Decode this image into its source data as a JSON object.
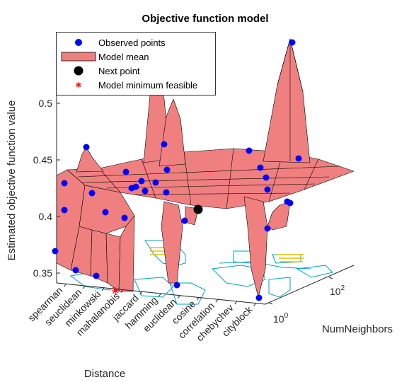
{
  "chart_data": {
    "type": "surface3d",
    "title": "Objective function model",
    "xlabel": "Distance",
    "ylabel": "NumNeighbors",
    "zlabel": "Estimated objective function value",
    "categories": [
      "spearman",
      "seuclidean",
      "minkowski",
      "mahalanobis",
      "jaccard",
      "hamming",
      "euclidean",
      "cosine",
      "correlation",
      "chebychev",
      "cityblock"
    ],
    "y_scale": "log",
    "y_ticks": [
      "10^0",
      "10^2"
    ],
    "z_ticks": [
      0.35,
      0.4,
      0.45,
      0.5
    ],
    "zlim": [
      0.33,
      0.52
    ],
    "legend": {
      "placement": "top-left",
      "entries": [
        {
          "label": "Observed points",
          "marker": "blue-dot"
        },
        {
          "label": "Model mean",
          "marker": "salmon-patch"
        },
        {
          "label": "Next point",
          "marker": "black-dot"
        },
        {
          "label": "Model minimum feasible",
          "marker": "red-asterisk"
        }
      ]
    },
    "surface_baseline_z": 0.445,
    "ridges": [
      {
        "category": "spearman",
        "z": 0.452
      },
      {
        "category": "seuclidean",
        "z": 0.5
      },
      {
        "category": "minkowski",
        "z": 0.502
      },
      {
        "category": "cosine",
        "z": 0.52
      },
      {
        "category": "euclidean",
        "z": 0.5
      }
    ],
    "troughs": [
      {
        "category": "spearman",
        "z": 0.37
      },
      {
        "category": "seuclidean",
        "z": 0.352
      },
      {
        "category": "minkowski",
        "z": 0.346
      },
      {
        "category": "mahalanobis",
        "z": 0.336
      },
      {
        "category": "hamming",
        "z": 0.34
      },
      {
        "category": "cityblock",
        "z": 0.345
      }
    ],
    "colors": {
      "surface": "#f08080",
      "mesh": "#000000",
      "observed": "#0000ff",
      "next": "#000000",
      "minimum": "#ff0000",
      "contour_blue": "#00a0c0",
      "contour_yellow": "#e0c000"
    }
  }
}
